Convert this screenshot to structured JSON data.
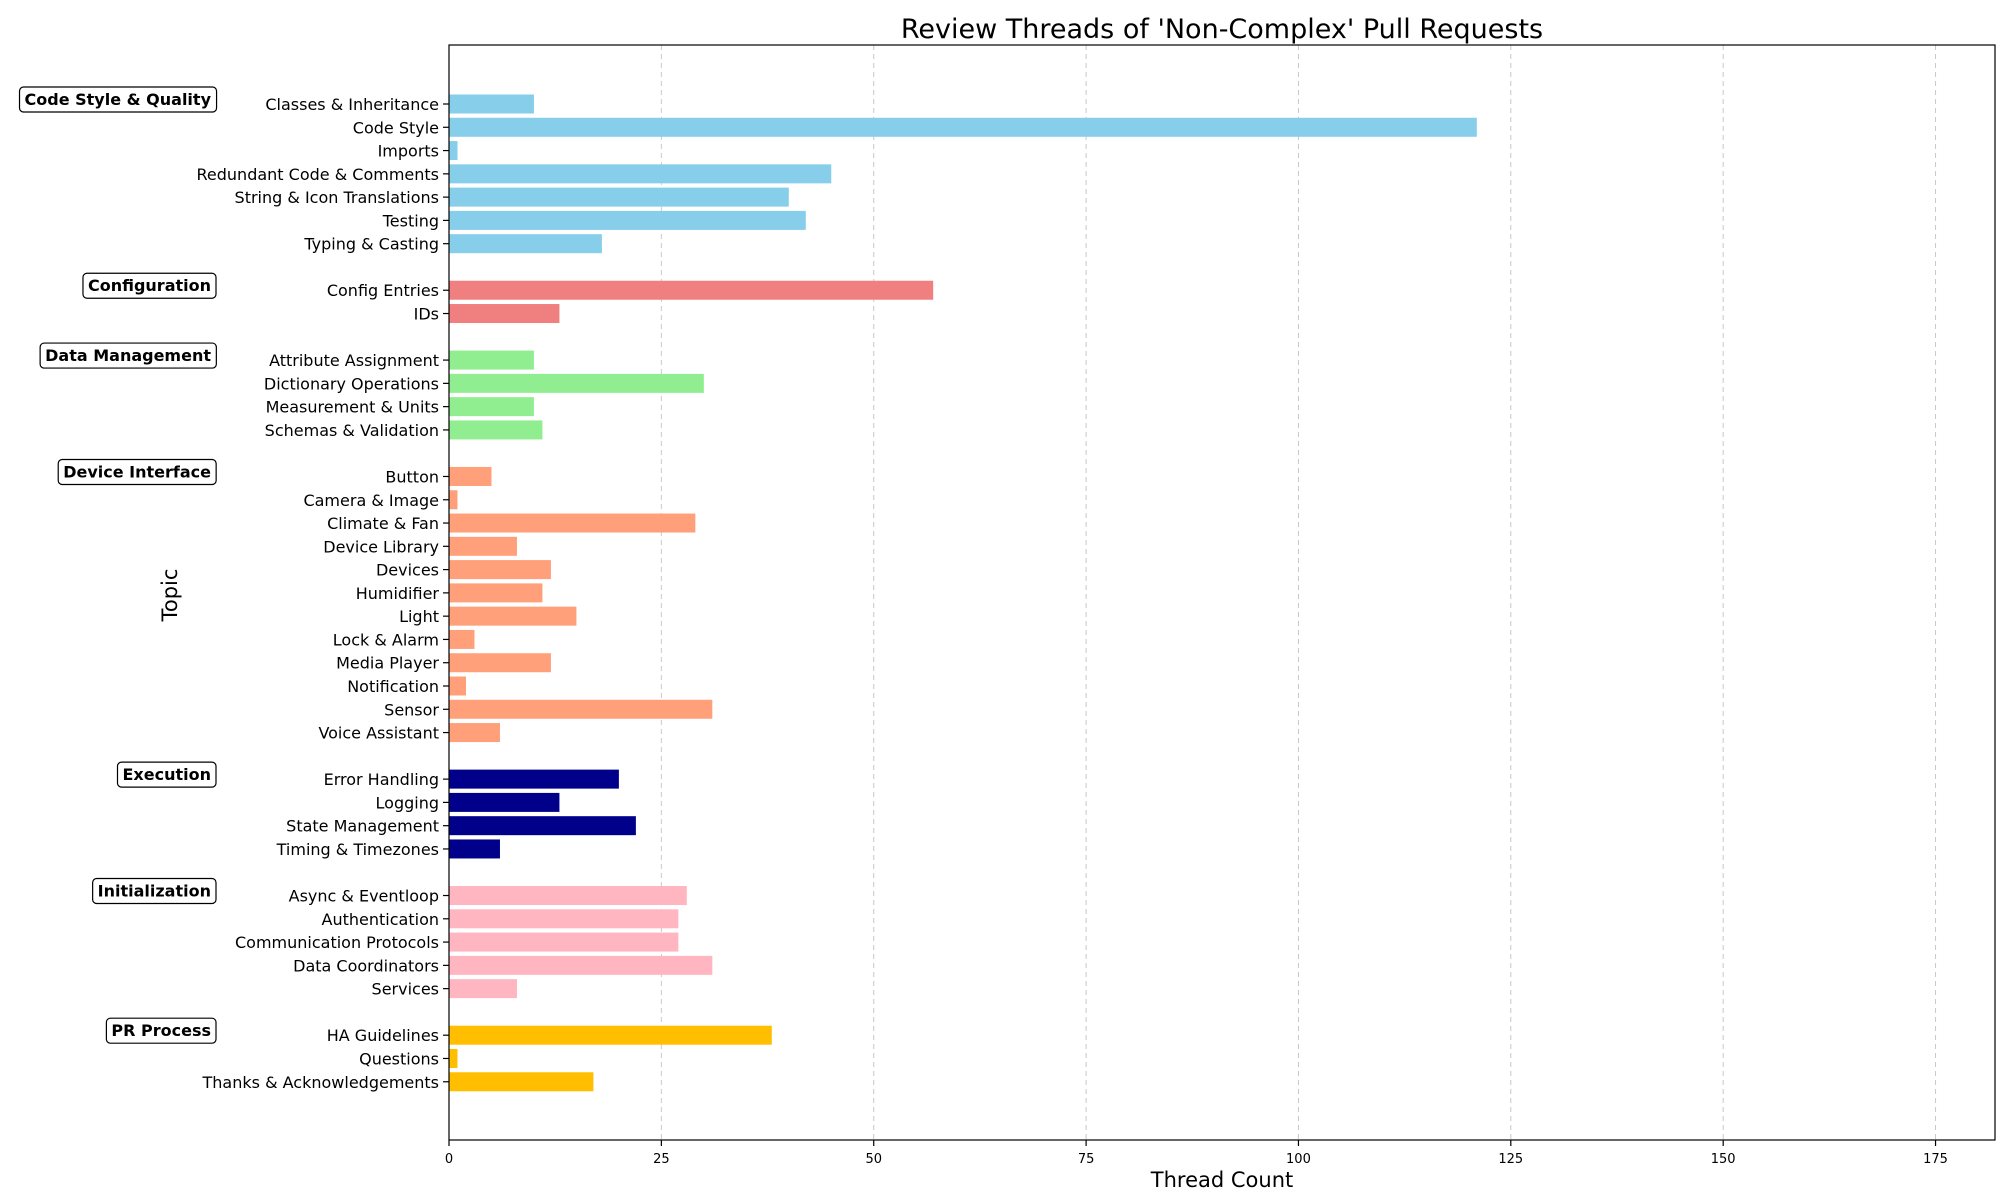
{
  "chart_data": {
    "type": "bar",
    "orientation": "horizontal",
    "title": "Review Threads of 'Non-Complex' Pull Requests",
    "xlabel": "Thread Count",
    "ylabel": "Topic",
    "xlim": [
      0,
      182
    ],
    "xticks": [
      0,
      25,
      50,
      75,
      100,
      125,
      150,
      175
    ],
    "grid": "x-dashed",
    "groups": [
      {
        "name": "Code Style & Quality",
        "color": "#87CEEB",
        "items": [
          {
            "label": "Classes & Inheritance",
            "value": 10
          },
          {
            "label": "Code Style",
            "value": 121
          },
          {
            "label": "Imports",
            "value": 1
          },
          {
            "label": "Redundant Code & Comments",
            "value": 45
          },
          {
            "label": "String & Icon Translations",
            "value": 40
          },
          {
            "label": "Testing",
            "value": 42
          },
          {
            "label": "Typing & Casting",
            "value": 18
          }
        ]
      },
      {
        "name": "Configuration",
        "color": "#F08080",
        "items": [
          {
            "label": "Config Entries",
            "value": 57
          },
          {
            "label": "IDs",
            "value": 13
          }
        ]
      },
      {
        "name": "Data Management",
        "color": "#90EE90",
        "items": [
          {
            "label": "Attribute Assignment",
            "value": 10
          },
          {
            "label": "Dictionary Operations",
            "value": 30
          },
          {
            "label": "Measurement & Units",
            "value": 10
          },
          {
            "label": "Schemas & Validation",
            "value": 11
          }
        ]
      },
      {
        "name": "Device Interface",
        "color": "#FFA07A",
        "items": [
          {
            "label": "Button",
            "value": 5
          },
          {
            "label": "Camera & Image",
            "value": 1
          },
          {
            "label": "Climate & Fan",
            "value": 29
          },
          {
            "label": "Device Library",
            "value": 8
          },
          {
            "label": "Devices",
            "value": 12
          },
          {
            "label": "Humidifier",
            "value": 11
          },
          {
            "label": "Light",
            "value": 15
          },
          {
            "label": "Lock & Alarm",
            "value": 3
          },
          {
            "label": "Media Player",
            "value": 12
          },
          {
            "label": "Notification",
            "value": 2
          },
          {
            "label": "Sensor",
            "value": 31
          },
          {
            "label": "Voice Assistant",
            "value": 6
          }
        ]
      },
      {
        "name": "Execution",
        "color": "#00008B",
        "items": [
          {
            "label": "Error Handling",
            "value": 20
          },
          {
            "label": "Logging",
            "value": 13
          },
          {
            "label": "State Management",
            "value": 22
          },
          {
            "label": "Timing & Timezones",
            "value": 6
          }
        ]
      },
      {
        "name": "Initialization",
        "color": "#FFB6C1",
        "items": [
          {
            "label": "Async & Eventloop",
            "value": 28
          },
          {
            "label": "Authentication",
            "value": 27
          },
          {
            "label": "Communication Protocols",
            "value": 27
          },
          {
            "label": "Data Coordinators",
            "value": 31
          },
          {
            "label": "Services",
            "value": 8
          }
        ]
      },
      {
        "name": "PR Process",
        "color": "#FFBF00",
        "items": [
          {
            "label": "HA Guidelines",
            "value": 38
          },
          {
            "label": "Questions",
            "value": 1
          },
          {
            "label": "Thanks & Acknowledgements",
            "value": 17
          }
        ]
      }
    ]
  }
}
